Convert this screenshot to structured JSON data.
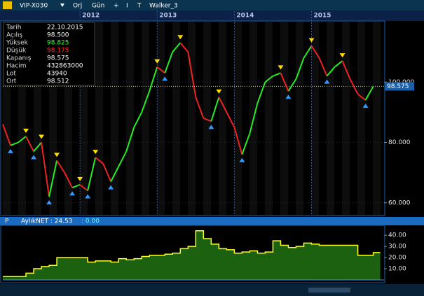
{
  "toolbar": {
    "symbol": "VIP-X030",
    "items": [
      "Orj",
      "Gün",
      "+",
      "I",
      "T",
      "Walker_3"
    ]
  },
  "info_panel": [
    {
      "label": "Tarih",
      "value": "22.10.2015",
      "color": "#ffffff"
    },
    {
      "label": "Açılış",
      "value": "98.500",
      "color": "#ffffff"
    },
    {
      "label": "Yüksek",
      "value": "98.825",
      "color": "#33ff33"
    },
    {
      "label": "Düşük",
      "value": "98.175",
      "color": "#ff3333"
    },
    {
      "label": "Kapanış",
      "value": "98.575",
      "color": "#ffffff"
    },
    {
      "label": "Hacim",
      "value": "432863000",
      "color": "#ffffff"
    },
    {
      "label": "Lot",
      "value": "43940",
      "color": "#ffffff"
    },
    {
      "label": "Ort",
      "value": "98.512",
      "color": "#ffffff"
    }
  ],
  "chart_data": [
    {
      "type": "price",
      "x": [
        2011.0,
        2011.1,
        2011.2,
        2011.3,
        2011.4,
        2011.5,
        2011.6,
        2011.7,
        2011.8,
        2011.9,
        2012.0,
        2012.1,
        2012.2,
        2012.3,
        2012.4,
        2012.5,
        2012.6,
        2012.7,
        2012.8,
        2012.9,
        2013.0,
        2013.1,
        2013.2,
        2013.3,
        2013.4,
        2013.5,
        2013.6,
        2013.7,
        2013.8,
        2013.9,
        2014.0,
        2014.1,
        2014.2,
        2014.3,
        2014.4,
        2014.5,
        2014.6,
        2014.7,
        2014.8,
        2014.9,
        2015.0,
        2015.1,
        2015.2,
        2015.3,
        2015.4,
        2015.5,
        2015.6,
        2015.7,
        2015.8
      ],
      "series": [
        {
          "name": "VIP-X030",
          "up_color": "#22ee22",
          "down_color": "#ee2222",
          "values": [
            86,
            79,
            80,
            82,
            77,
            80,
            62,
            74,
            70,
            65,
            66,
            64,
            75,
            73,
            67,
            72,
            77,
            85,
            90,
            97,
            105,
            103,
            110,
            113,
            110,
            95,
            88,
            87,
            95,
            90,
            85,
            76,
            83,
            93,
            100,
            102,
            103,
            97,
            101,
            108,
            112,
            108,
            102,
            105,
            107,
            101,
            96,
            94,
            98.575
          ]
        }
      ],
      "peak_color": "#ffdd00",
      "trough_color": "#3399ff",
      "last_line_color": "#dddd00",
      "xlim": [
        2011.0,
        2015.94
      ],
      "xticks": [
        2012,
        2013,
        2014,
        2015
      ],
      "ylim": [
        56,
        120
      ],
      "yticks": [
        {
          "value": 60,
          "label": "60.000"
        },
        {
          "value": 80,
          "label": "80.000"
        },
        {
          "value": 100,
          "label": "100.000"
        }
      ]
    },
    {
      "type": "step-area",
      "title": "AylıkNET : 24.53",
      "subtitle": ": 0.00",
      "panel_label": "P",
      "x": [
        2011.0,
        2011.1,
        2011.2,
        2011.3,
        2011.4,
        2011.5,
        2011.6,
        2011.7,
        2011.8,
        2011.9,
        2012.0,
        2012.1,
        2012.2,
        2012.3,
        2012.4,
        2012.5,
        2012.6,
        2012.7,
        2012.8,
        2012.9,
        2013.0,
        2013.1,
        2013.2,
        2013.3,
        2013.4,
        2013.5,
        2013.6,
        2013.7,
        2013.8,
        2013.9,
        2014.0,
        2014.1,
        2014.2,
        2014.3,
        2014.4,
        2014.5,
        2014.6,
        2014.7,
        2014.8,
        2014.9,
        2015.0,
        2015.1,
        2015.2,
        2015.3,
        2015.4,
        2015.5,
        2015.6,
        2015.7,
        2015.8
      ],
      "series": [
        {
          "name": "AylıkNET",
          "color": "#ffff22",
          "fill": "#1f6b12",
          "values": [
            3,
            3,
            3,
            6,
            10,
            12,
            13,
            20,
            20,
            20,
            20,
            16,
            17,
            17,
            16,
            19,
            18,
            19,
            21,
            22,
            22,
            23,
            24,
            28,
            30,
            44,
            37,
            32,
            28,
            27,
            24,
            25,
            26,
            24,
            25,
            35,
            31,
            29,
            30,
            33,
            32,
            31,
            31,
            31,
            31,
            31,
            22,
            22,
            24.53
          ]
        }
      ],
      "xlim": [
        2011.0,
        2015.94
      ],
      "ylim": [
        0,
        47
      ],
      "yticks": [
        {
          "value": 10,
          "label": "10.00"
        },
        {
          "value": 20,
          "label": "20.00"
        },
        {
          "value": 30,
          "label": "30.00"
        },
        {
          "value": 40,
          "label": "40.00"
        }
      ]
    }
  ]
}
